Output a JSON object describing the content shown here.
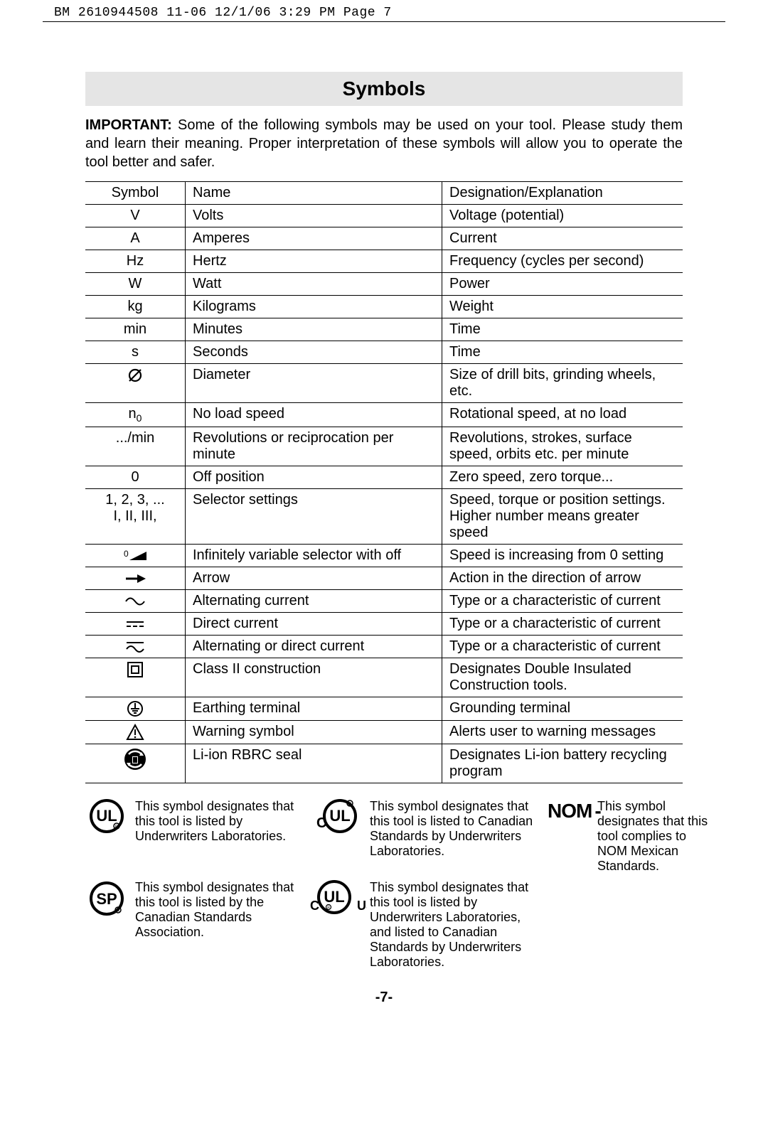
{
  "header_crop": "BM 2610944508 11-06  12/1/06  3:29 PM  Page 7",
  "title": "Symbols",
  "intro_bold": "IMPORTANT:",
  "intro_rest": " Some of the following symbols may be used on your tool.  Please study them and learn their meaning.  Proper interpretation of these symbols will allow you to operate the tool better and safer.",
  "columns": {
    "c1": "Symbol",
    "c2": "Name",
    "c3": "Designation/Explanation"
  },
  "rows": [
    {
      "sym_text": "V",
      "name": "Volts",
      "desc": "Voltage (potential)"
    },
    {
      "sym_text": "A",
      "name": "Amperes",
      "desc": "Current"
    },
    {
      "sym_text": "Hz",
      "name": "Hertz",
      "desc": "Frequency (cycles per second)"
    },
    {
      "sym_text": "W",
      "name": "Watt",
      "desc": "Power"
    },
    {
      "sym_text": "kg",
      "name": "Kilograms",
      "desc": "Weight"
    },
    {
      "sym_text": "min",
      "name": "Minutes",
      "desc": "Time"
    },
    {
      "sym_text": "s",
      "name": "Seconds",
      "desc": "Time"
    },
    {
      "sym_svg": "diameter",
      "name": "Diameter",
      "desc": "Size of drill bits, grinding wheels,  etc."
    },
    {
      "sym_html": "n<span class='sub'>0</span>",
      "name": "No load speed",
      "desc": "Rotational speed, at no load"
    },
    {
      "sym_text": ".../min",
      "name": "Revolutions or reciprocation per minute",
      "desc": "Revolutions, strokes, surface speed, orbits etc. per minute"
    },
    {
      "sym_text": "0",
      "name": "Off position",
      "desc": "Zero speed, zero torque..."
    },
    {
      "sym_html": "1, 2, 3, ...<br>I, II, III,",
      "name": "Selector settings",
      "desc": "Speed, torque or position settings. Higher number means greater speed"
    },
    {
      "sym_svg": "ramp",
      "name": "Infinitely variable selector with off",
      "desc": "Speed is increasing from 0 setting"
    },
    {
      "sym_svg": "arrow",
      "name": "Arrow",
      "desc": "Action in the direction of arrow"
    },
    {
      "sym_svg": "ac",
      "name": "Alternating current",
      "desc": "Type or a characteristic of current"
    },
    {
      "sym_svg": "dc",
      "name": "Direct current",
      "desc": "Type or a characteristic of current"
    },
    {
      "sym_svg": "acdc",
      "name": "Alternating or direct current",
      "desc": "Type or a characteristic of current"
    },
    {
      "sym_svg": "class2",
      "name": "Class II  construction",
      "desc": "Designates Double Insulated Construction tools."
    },
    {
      "sym_svg": "earth",
      "name": "Earthing terminal",
      "desc": "Grounding terminal"
    },
    {
      "sym_svg": "warning",
      "name": "Warning symbol",
      "desc": "Alerts user to warning messages"
    },
    {
      "sym_svg": "rbrc",
      "name": "Li-ion RBRC seal",
      "desc": "Designates Li-ion battery recycling program"
    }
  ],
  "certs": {
    "ul": "This symbol designates that this tool is listed by Underwriters Laboratories.",
    "cul": "This symbol designates that this tool is listed to Canadian Standards by Underwriters Laboratories.",
    "csa": "This symbol designates that this tool is listed by the Canadian Standards Association.",
    "culus": "This symbol designates that this tool is listed by Underwriters Laboratories, and listed to Canadian Standards by Underwriters Laboratories.",
    "nom": "This symbol designates that this tool complies to NOM Mexican Standards."
  },
  "nom_label": "NOM",
  "page_number": "-7-"
}
